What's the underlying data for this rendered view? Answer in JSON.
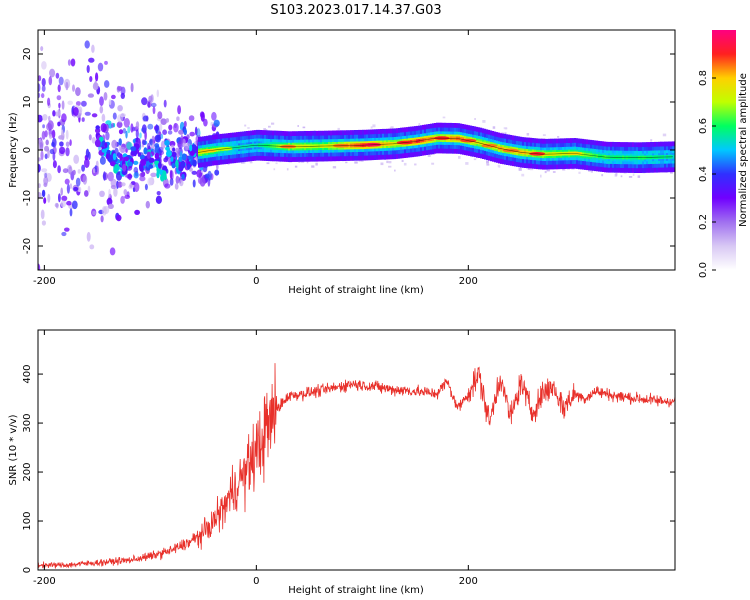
{
  "figure": {
    "title": "S103.2023.017.14.37.G03"
  },
  "colors": {
    "snr_line": "#e8302a",
    "axis": "#000000",
    "colormap": [
      "#ffffff",
      "#d8c8f4",
      "#a070f0",
      "#7000ff",
      "#3030ff",
      "#00c8ff",
      "#00ff60",
      "#c0ff00",
      "#ffd000",
      "#ff2020",
      "#ff0080"
    ]
  },
  "chart_data": [
    {
      "type": "heatmap",
      "title": "",
      "xlabel": "Height of straight line (km)",
      "ylabel": "Frequency (Hz)",
      "xlim": [
        -206,
        395
      ],
      "ylim": [
        -25,
        25
      ],
      "x_ticks": [
        -200,
        0,
        200
      ],
      "y_ticks": [
        -20,
        -10,
        0,
        10,
        20
      ],
      "colorbar": {
        "label": "Normalized spectral amplitude",
        "range": [
          0,
          1
        ],
        "ticks": [
          0.0,
          0.2,
          0.4,
          0.6,
          0.8
        ]
      },
      "ridge": {
        "x": [
          -55,
          -40,
          -20,
          0,
          30,
          60,
          100,
          130,
          150,
          170,
          190,
          210,
          230,
          250,
          270,
          300,
          330,
          360,
          395
        ],
        "freq": [
          -0.5,
          0.0,
          0.5,
          1.0,
          0.7,
          0.8,
          1.0,
          1.3,
          1.8,
          2.5,
          2.4,
          1.5,
          0.3,
          -0.5,
          -0.9,
          -0.7,
          -1.5,
          -1.6,
          -1.4
        ],
        "peak_amplitude": [
          0.75,
          0.7,
          0.55,
          0.55,
          0.75,
          0.7,
          0.9,
          0.75,
          0.9,
          0.8,
          0.85,
          0.75,
          0.8,
          0.8,
          0.75,
          0.7,
          0.6,
          0.6,
          0.55
        ]
      },
      "scattered_region_x": [
        -206,
        -55
      ]
    },
    {
      "type": "line",
      "title": "",
      "xlabel": "Height of straight line (km)",
      "ylabel": "SNR (10 * v/v)",
      "xlim": [
        -206,
        395
      ],
      "ylim": [
        0,
        490
      ],
      "x_ticks": [
        -200,
        0,
        200
      ],
      "y_ticks": [
        0,
        100,
        200,
        300,
        400
      ],
      "series": [
        {
          "x": [
            -206,
            -180,
            -150,
            -120,
            -100,
            -80,
            -60,
            -50,
            -40,
            -30,
            -20,
            -10,
            0,
            10,
            20,
            30,
            50,
            70,
            90,
            110,
            130,
            150,
            170,
            180,
            190,
            200,
            210,
            220,
            230,
            240,
            250,
            260,
            270,
            280,
            290,
            300,
            310,
            320,
            340,
            360,
            380,
            395
          ],
          "y": [
            10,
            10,
            15,
            20,
            28,
            40,
            60,
            75,
            100,
            130,
            170,
            200,
            240,
            290,
            330,
            355,
            362,
            370,
            380,
            375,
            368,
            365,
            360,
            385,
            330,
            360,
            400,
            300,
            395,
            310,
            385,
            320,
            360,
            375,
            330,
            360,
            350,
            365,
            355,
            350,
            345,
            345
          ]
        }
      ]
    }
  ]
}
